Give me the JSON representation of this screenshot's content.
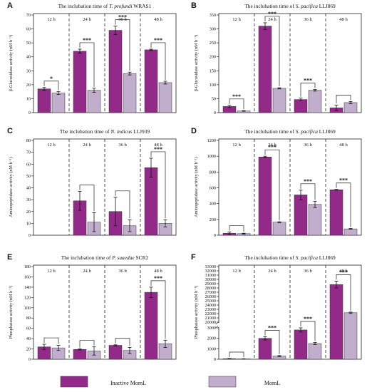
{
  "colors": {
    "inactive": "#932a8a",
    "moml": "#c1aecd"
  },
  "legend": [
    {
      "label": "Inactive MomL",
      "color": "#932a8a"
    },
    {
      "label": "MomL",
      "color": "#c1aecd"
    }
  ],
  "chart_data": [
    {
      "panel": "A",
      "type": "bar",
      "title_pre": "The inclubation time of ",
      "title_it": "T. profundi",
      "title_post": " WRAS1",
      "ylabel": "β-Glucosidase activity (nM h⁻¹)",
      "ylim": [
        0,
        70
      ],
      "yticks": [
        0,
        10,
        20,
        30,
        40,
        50,
        60,
        70
      ],
      "categories": [
        "12 h",
        "24 h",
        "36 h",
        "48 h"
      ],
      "series": [
        {
          "name": "Inactive MomL",
          "values": [
            17,
            44,
            59,
            45
          ],
          "errors": [
            1,
            1.5,
            3,
            0.5
          ]
        },
        {
          "name": "MomL",
          "values": [
            14,
            16,
            28,
            21.5
          ],
          "errors": [
            1,
            1.5,
            1,
            1
          ]
        }
      ],
      "significance": [
        "*",
        "***",
        "***",
        "***"
      ]
    },
    {
      "panel": "B",
      "type": "bar",
      "title_pre": "The inclubation time of ",
      "title_it": "S. pacifica",
      "title_post": " LLJ869",
      "ylabel": "β-Glucosidase activity (nM h⁻¹)",
      "ylim": [
        0,
        350
      ],
      "yticks": [
        0,
        50,
        100,
        150,
        200,
        250,
        300,
        350
      ],
      "categories": [
        "12 h",
        "24 h",
        "36 h",
        "48 h"
      ],
      "series": [
        {
          "name": "Inactive MomL",
          "values": [
            22,
            310,
            47,
            17
          ],
          "errors": [
            4,
            12,
            5,
            10
          ]
        },
        {
          "name": "MomL",
          "values": [
            6,
            87,
            80,
            36
          ],
          "errors": [
            1,
            2,
            3,
            4
          ]
        }
      ],
      "significance": [
        "***",
        "***",
        "***",
        ""
      ]
    },
    {
      "panel": "C",
      "type": "bar",
      "title_pre": "The inclubation time of ",
      "title_it": "N. indicus",
      "title_post": " LLJ939",
      "ylabel": "Aminopeptidase activity (nM h⁻¹)",
      "ylim": [
        0,
        80
      ],
      "yticks": [
        0,
        10,
        20,
        30,
        40,
        50,
        60,
        70,
        80
      ],
      "categories": [
        "12 h",
        "24 h",
        "36 h",
        "48 h"
      ],
      "series": [
        {
          "name": "Inactive MomL",
          "values": [
            null,
            29,
            20,
            57
          ],
          "errors": [
            0,
            8,
            12,
            8
          ]
        },
        {
          "name": "MomL",
          "values": [
            null,
            11,
            8,
            10
          ],
          "errors": [
            0,
            8,
            5,
            3
          ]
        }
      ],
      "significance": [
        "",
        "",
        "",
        "***"
      ]
    },
    {
      "panel": "D",
      "type": "bar",
      "title_pre": "The inclubation time of ",
      "title_it": "S. pacifica",
      "title_post": " LLJ869",
      "ylabel": "Aminopeptidase activity (nM h⁻¹)",
      "ylim": [
        0,
        1200
      ],
      "yticks": [
        0,
        200,
        400,
        600,
        800,
        1000,
        1200
      ],
      "categories": [
        "12 h",
        "24 h",
        "36 h",
        "48 h"
      ],
      "series": [
        {
          "name": "Inactive MomL",
          "values": [
            25,
            990,
            510,
            575
          ],
          "errors": [
            15,
            10,
            60,
            5
          ]
        },
        {
          "name": "MomL",
          "values": [
            20,
            165,
            390,
            80
          ],
          "errors": [
            5,
            5,
            40,
            5
          ]
        }
      ],
      "significance": [
        "",
        "***",
        "***",
        "***"
      ]
    },
    {
      "panel": "E",
      "type": "bar",
      "title_pre": "The inclubation time of ",
      "title_it": "P. suaedae",
      "title_post": " SCR2",
      "ylabel": "Phosphatase activity (nM h⁻¹)",
      "ylim": [
        0,
        180
      ],
      "yticks": [
        0,
        20,
        40,
        60,
        80,
        100,
        120,
        140,
        160,
        180
      ],
      "categories": [
        "12 h",
        "24 h",
        "36 h",
        "48 h"
      ],
      "series": [
        {
          "name": "Inactive MomL",
          "values": [
            24,
            19,
            27,
            130
          ],
          "errors": [
            5,
            1,
            1,
            10
          ]
        },
        {
          "name": "MomL",
          "values": [
            22,
            16,
            17,
            30
          ],
          "errors": [
            5,
            8,
            6,
            7
          ]
        }
      ],
      "significance": [
        "",
        "",
        "",
        "***"
      ]
    },
    {
      "panel": "F",
      "type": "bar",
      "broken_axis": true,
      "title_pre": "The inclubation time of ",
      "title_it": "S. pacifica",
      "title_post": " LLJ869",
      "ylabel": "Phosphatase activity (nM h⁻¹)",
      "yticks_lower": [
        0,
        1000,
        2000,
        3000
      ],
      "yticks_upper": [
        20000,
        21000,
        22000,
        23000,
        24000,
        25000,
        26000,
        27000,
        28000,
        29000,
        30000,
        31000,
        32000,
        33000
      ],
      "categories": [
        "12 h",
        "24 h",
        "36 h",
        "48 h"
      ],
      "series": [
        {
          "name": "Inactive MomL",
          "values": [
            50,
            2000,
            2800,
            28800
          ],
          "errors": [
            20,
            150,
            200,
            800
          ]
        },
        {
          "name": "MomL",
          "values": [
            30,
            300,
            1500,
            22200
          ],
          "errors": [
            10,
            50,
            100,
            150
          ]
        }
      ],
      "significance": [
        "",
        "***",
        "***",
        "***"
      ]
    }
  ]
}
